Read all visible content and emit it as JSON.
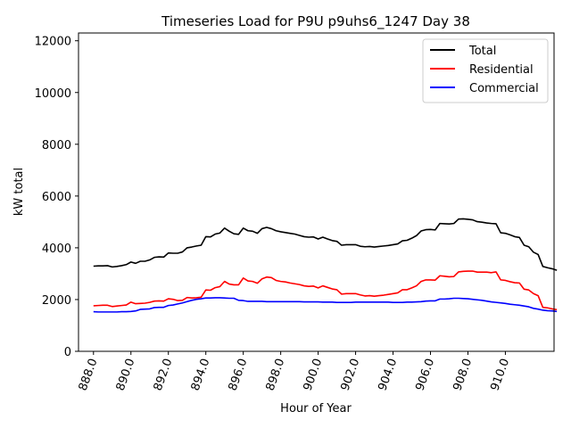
{
  "chart_data": {
    "type": "line",
    "title": "Timeseries Load for P9U p9uhs6_1247  Day 38",
    "xlabel": "Hour of Year",
    "ylabel": "kW total",
    "xlim": [
      887.2,
      912.6
    ],
    "ylim": [
      0,
      12300
    ],
    "xticks": [
      888,
      890,
      892,
      894,
      896,
      898,
      900,
      902,
      904,
      906,
      908,
      910
    ],
    "xtick_labels": [
      "888.0",
      "890.0",
      "892.0",
      "894.0",
      "896.0",
      "898.0",
      "900.0",
      "902.0",
      "904.0",
      "906.0",
      "908.0",
      "910.0"
    ],
    "yticks": [
      0,
      2000,
      4000,
      6000,
      8000,
      10000,
      12000
    ],
    "ytick_labels": [
      "0",
      "2000",
      "4000",
      "6000",
      "8000",
      "10000",
      "12000"
    ],
    "legend_position": "top-right",
    "x_start": 888.0,
    "x_step": 0.25,
    "series": [
      {
        "name": "Total",
        "color": "#000000",
        "values": [
          3290,
          3300,
          3300,
          3310,
          3260,
          3280,
          3310,
          3350,
          3450,
          3400,
          3480,
          3480,
          3530,
          3630,
          3650,
          3640,
          3800,
          3790,
          3790,
          3840,
          4000,
          4030,
          4070,
          4100,
          4430,
          4420,
          4530,
          4570,
          4760,
          4640,
          4540,
          4520,
          4760,
          4660,
          4640,
          4560,
          4740,
          4790,
          4740,
          4660,
          4620,
          4590,
          4560,
          4530,
          4480,
          4430,
          4410,
          4420,
          4340,
          4410,
          4340,
          4280,
          4250,
          4100,
          4120,
          4120,
          4120,
          4060,
          4040,
          4050,
          4030,
          4050,
          4070,
          4090,
          4120,
          4150,
          4270,
          4290,
          4370,
          4470,
          4650,
          4700,
          4710,
          4690,
          4940,
          4930,
          4920,
          4940,
          5110,
          5120,
          5100,
          5080,
          5010,
          4990,
          4960,
          4940,
          4930,
          4580,
          4560,
          4500,
          4430,
          4400,
          4100,
          4040,
          3830,
          3740,
          3280,
          3230,
          3190,
          3130
        ]
      },
      {
        "name": "Residential",
        "color": "#ff0000",
        "values": [
          1760,
          1770,
          1780,
          1780,
          1730,
          1750,
          1770,
          1790,
          1900,
          1840,
          1850,
          1860,
          1890,
          1940,
          1950,
          1940,
          2030,
          2010,
          1960,
          1970,
          2080,
          2060,
          2070,
          2090,
          2370,
          2360,
          2460,
          2500,
          2700,
          2600,
          2570,
          2570,
          2830,
          2720,
          2700,
          2630,
          2800,
          2870,
          2850,
          2740,
          2700,
          2680,
          2640,
          2610,
          2580,
          2530,
          2510,
          2520,
          2450,
          2530,
          2470,
          2410,
          2380,
          2210,
          2230,
          2230,
          2230,
          2180,
          2140,
          2150,
          2130,
          2150,
          2170,
          2200,
          2230,
          2260,
          2380,
          2380,
          2450,
          2530,
          2700,
          2760,
          2760,
          2750,
          2920,
          2900,
          2880,
          2890,
          3070,
          3090,
          3100,
          3100,
          3060,
          3060,
          3060,
          3040,
          3070,
          2760,
          2740,
          2690,
          2650,
          2640,
          2400,
          2370,
          2230,
          2150,
          1700,
          1680,
          1640,
          1610
        ]
      },
      {
        "name": "Commercial",
        "color": "#0000ff",
        "values": [
          1530,
          1520,
          1520,
          1520,
          1520,
          1520,
          1530,
          1530,
          1540,
          1560,
          1620,
          1630,
          1640,
          1690,
          1700,
          1700,
          1770,
          1790,
          1830,
          1870,
          1920,
          1970,
          2010,
          2030,
          2060,
          2060,
          2070,
          2070,
          2060,
          2050,
          2050,
          1970,
          1960,
          1930,
          1930,
          1930,
          1930,
          1920,
          1920,
          1920,
          1920,
          1920,
          1920,
          1920,
          1920,
          1910,
          1910,
          1910,
          1910,
          1900,
          1900,
          1900,
          1890,
          1890,
          1890,
          1890,
          1900,
          1900,
          1900,
          1900,
          1900,
          1900,
          1900,
          1900,
          1890,
          1890,
          1890,
          1900,
          1900,
          1910,
          1920,
          1940,
          1950,
          1950,
          2020,
          2020,
          2030,
          2050,
          2050,
          2040,
          2030,
          2010,
          1990,
          1970,
          1940,
          1910,
          1890,
          1870,
          1850,
          1820,
          1800,
          1780,
          1750,
          1720,
          1660,
          1630,
          1590,
          1570,
          1560,
          1540
        ]
      }
    ]
  }
}
